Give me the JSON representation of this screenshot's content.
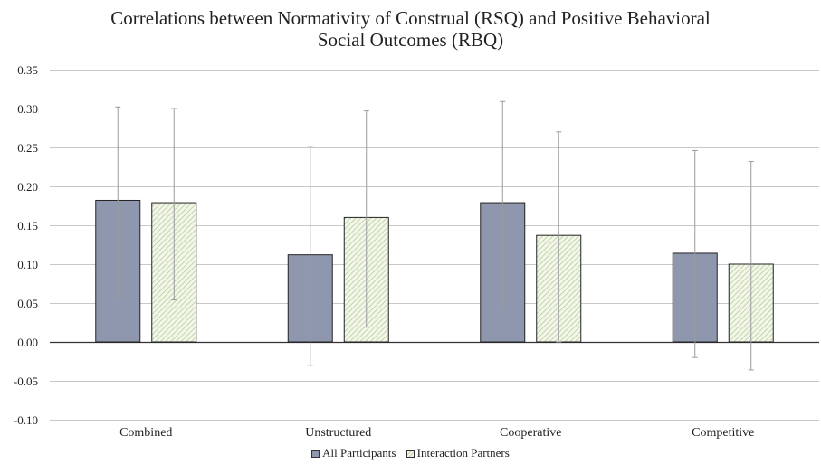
{
  "chart_data": {
    "type": "bar",
    "title_line1": "Correlations between Normativity of Construal (RSQ) and Positive Behavioral",
    "title_line2": "Social Outcomes (RBQ)",
    "categories": [
      "Combined",
      "Unstructured",
      "Cooperative",
      "Competitive"
    ],
    "series": [
      {
        "name": "All Participants",
        "color": "#8e97ad",
        "values": [
          0.182,
          0.112,
          0.179,
          0.114
        ],
        "error_low": [
          0.056,
          -0.03,
          0.044,
          -0.02
        ],
        "error_high": [
          0.302,
          0.251,
          0.309,
          0.246
        ]
      },
      {
        "name": "Interaction Partners",
        "color": "#c6d7b0",
        "values": [
          0.179,
          0.16,
          0.137,
          0.1
        ],
        "error_low": [
          0.054,
          0.019,
          0.0,
          -0.036
        ],
        "error_high": [
          0.3,
          0.297,
          0.27,
          0.232
        ]
      }
    ],
    "ylim": [
      -0.1,
      0.35
    ],
    "yticks": [
      "0.35",
      "0.30",
      "0.25",
      "0.20",
      "0.15",
      "0.10",
      "0.05",
      "0.00",
      "-0.05",
      "-0.10"
    ],
    "grid": true,
    "legend_position": "bottom"
  }
}
